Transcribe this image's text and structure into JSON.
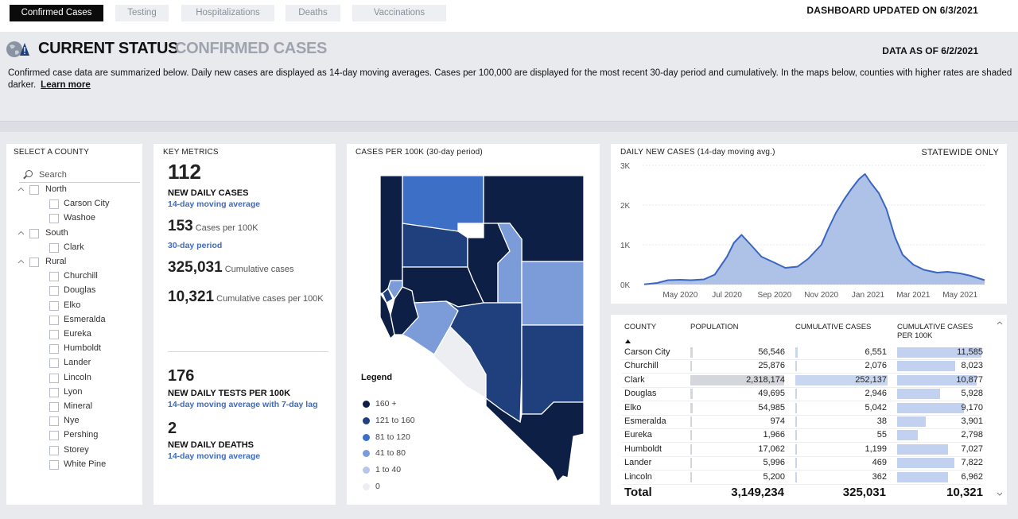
{
  "tabs": [
    {
      "label": "Confirmed Cases",
      "active": true
    },
    {
      "label": "Testing",
      "active": false
    },
    {
      "label": "Hospitalizations",
      "active": false
    },
    {
      "label": "Deaths",
      "active": false
    },
    {
      "label": "Vaccinations",
      "active": false
    }
  ],
  "updated": "DASHBOARD UPDATED ON 6/3/2021",
  "header": {
    "title": "CURRENT STATUS",
    "subtitle": "CONFIRMED CASES",
    "data_as_of": "DATA AS OF 6/2/2021",
    "description": "Confirmed case data are summarized below. Daily new cases are displayed as 14-day moving averages. Cases per 100,000 are displayed for the most recent 30-day period and cumulatively. In the maps below, counties with higher rates are shaded darker.",
    "learn_more": "Learn more"
  },
  "county_panel": {
    "title": "SELECT A COUNTY",
    "search_placeholder": "Search",
    "groups": [
      {
        "label": "North",
        "counties": [
          "Carson City",
          "Washoe"
        ]
      },
      {
        "label": "South",
        "counties": [
          "Clark"
        ]
      },
      {
        "label": "Rural",
        "counties": [
          "Churchill",
          "Douglas",
          "Elko",
          "Esmeralda",
          "Eureka",
          "Humboldt",
          "Lander",
          "Lincoln",
          "Lyon",
          "Mineral",
          "Nye",
          "Pershing",
          "Storey",
          "White Pine"
        ]
      }
    ]
  },
  "metrics": {
    "title": "KEY METRICS",
    "new_daily_cases": "112",
    "new_daily_cases_label": "NEW DAILY CASES",
    "new_daily_cases_sub": "14-day moving average",
    "cases_per_100k": "153",
    "cases_per_100k_label": "Cases per 100K",
    "cases_per_100k_sub": "30-day period",
    "cumulative_cases": "325,031",
    "cumulative_cases_label": "Cumulative cases",
    "cumulative_per_100k": "10,321",
    "cumulative_per_100k_label": "Cumulative cases per 100K",
    "tests_per_100k": "176",
    "tests_label": "NEW DAILY TESTS PER 100K",
    "tests_sub": "14-day moving average with 7-day lag",
    "deaths": "2",
    "deaths_label": "NEW DAILY DEATHS",
    "deaths_sub": "14-day moving average"
  },
  "map": {
    "title": "CASES PER 100K (30-day period)",
    "legend_title": "Legend",
    "legend": [
      {
        "label": "160 +",
        "color": "#0d1f44"
      },
      {
        "label": "121 to 160",
        "color": "#1f3f7d"
      },
      {
        "label": "81 to 120",
        "color": "#3d6fc6"
      },
      {
        "label": "41 to 80",
        "color": "#7b9cd8"
      },
      {
        "label": "1 to 40",
        "color": "#b4c8ec"
      },
      {
        "label": "0",
        "color": "#eceef2"
      }
    ]
  },
  "trend": {
    "title": "DAILY NEW CASES (14-day moving avg.)",
    "scope": "STATEWIDE ONLY"
  },
  "chart_data": {
    "type": "area",
    "title": "DAILY NEW CASES (14-day moving avg.)",
    "xlabel": "",
    "ylabel": "",
    "ylim": [
      0,
      3000
    ],
    "yticks": [
      "0K",
      "1K",
      "2K",
      "3K"
    ],
    "x_ticks": [
      "May 2020",
      "Jul 2020",
      "Sep 2020",
      "Nov 2020",
      "Jan 2021",
      "Mar 2021",
      "May 2021"
    ],
    "x": [
      "2020-03-15",
      "2020-04-01",
      "2020-04-15",
      "2020-05-01",
      "2020-05-15",
      "2020-06-01",
      "2020-06-15",
      "2020-07-01",
      "2020-07-10",
      "2020-07-20",
      "2020-08-01",
      "2020-08-15",
      "2020-09-01",
      "2020-09-15",
      "2020-10-01",
      "2020-10-15",
      "2020-11-01",
      "2020-11-10",
      "2020-11-20",
      "2020-12-01",
      "2020-12-10",
      "2020-12-20",
      "2020-12-28",
      "2021-01-05",
      "2021-01-15",
      "2021-01-25",
      "2021-02-05",
      "2021-02-15",
      "2021-03-01",
      "2021-03-15",
      "2021-04-01",
      "2021-04-15",
      "2021-05-01",
      "2021-05-15",
      "2021-06-02"
    ],
    "values": [
      5,
      40,
      110,
      120,
      110,
      130,
      250,
      700,
      1050,
      1250,
      1000,
      700,
      550,
      420,
      450,
      650,
      1000,
      1400,
      1800,
      2150,
      2400,
      2650,
      2780,
      2550,
      2300,
      1900,
      1200,
      750,
      500,
      370,
      300,
      320,
      280,
      220,
      110
    ]
  },
  "table": {
    "columns": [
      "COUNTY",
      "POPULATION",
      "CUMULATIVE CASES",
      "CUMULATIVE CASES PER 100K"
    ],
    "rows": [
      {
        "county": "Carson City",
        "population": "56,546",
        "cases": "6,551",
        "per100k": "11,585",
        "pop_v": 56546,
        "cases_v": 6551,
        "per_v": 11585
      },
      {
        "county": "Churchill",
        "population": "25,876",
        "cases": "2,076",
        "per100k": "8,023",
        "pop_v": 25876,
        "cases_v": 2076,
        "per_v": 8023
      },
      {
        "county": "Clark",
        "population": "2,318,174",
        "cases": "252,137",
        "per100k": "10,877",
        "pop_v": 2318174,
        "cases_v": 252137,
        "per_v": 10877
      },
      {
        "county": "Douglas",
        "population": "49,695",
        "cases": "2,946",
        "per100k": "5,928",
        "pop_v": 49695,
        "cases_v": 2946,
        "per_v": 5928
      },
      {
        "county": "Elko",
        "population": "54,985",
        "cases": "5,042",
        "per100k": "9,170",
        "pop_v": 54985,
        "cases_v": 5042,
        "per_v": 9170
      },
      {
        "county": "Esmeralda",
        "population": "974",
        "cases": "38",
        "per100k": "3,901",
        "pop_v": 974,
        "cases_v": 38,
        "per_v": 3901
      },
      {
        "county": "Eureka",
        "population": "1,966",
        "cases": "55",
        "per100k": "2,798",
        "pop_v": 1966,
        "cases_v": 55,
        "per_v": 2798
      },
      {
        "county": "Humboldt",
        "population": "17,062",
        "cases": "1,199",
        "per100k": "7,027",
        "pop_v": 17062,
        "cases_v": 1199,
        "per_v": 7027
      },
      {
        "county": "Lander",
        "population": "5,996",
        "cases": "469",
        "per100k": "7,822",
        "pop_v": 5996,
        "cases_v": 469,
        "per_v": 7822
      },
      {
        "county": "Lincoln",
        "population": "5,200",
        "cases": "362",
        "per100k": "6,962",
        "pop_v": 5200,
        "cases_v": 362,
        "per_v": 6962
      }
    ],
    "total": {
      "label": "Total",
      "population": "3,149,234",
      "cases": "325,031",
      "per100k": "10,321"
    }
  }
}
